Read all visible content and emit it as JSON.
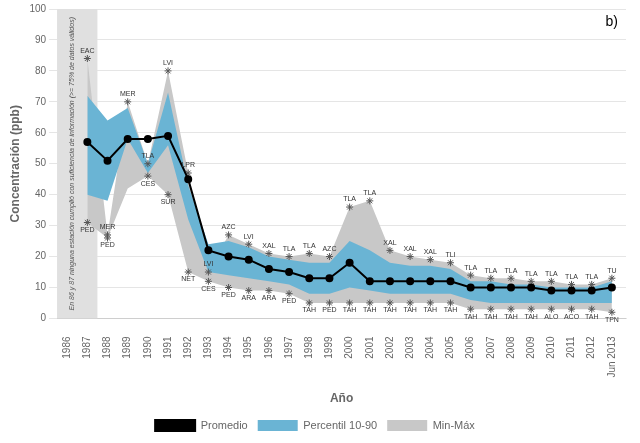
{
  "chart_data": {
    "type": "line",
    "title": "b)",
    "xlabel": "Año",
    "ylabel": "Concentración (ppb)",
    "x": [
      1987,
      1988,
      1989,
      1990,
      1991,
      1992,
      1993,
      1994,
      1995,
      1996,
      1997,
      1998,
      1999,
      2000,
      2001,
      2002,
      2003,
      2004,
      2005,
      2006,
      2007,
      2008,
      2009,
      2010,
      2011,
      2012,
      2013
    ],
    "xlim": [
      1985.5,
      2013.7
    ],
    "xticks": [
      1986,
      1987,
      1988,
      1989,
      1990,
      1991,
      1992,
      1993,
      1994,
      1995,
      1996,
      1997,
      1998,
      1999,
      2000,
      2001,
      2002,
      2003,
      2004,
      2005,
      2006,
      2007,
      2008,
      2009,
      2010,
      2011,
      2012,
      {
        "value": 2013,
        "label": "Jun 2013"
      }
    ],
    "ylim": [
      0,
      100
    ],
    "yticks": [
      0,
      10,
      20,
      30,
      40,
      50,
      60,
      70,
      80,
      90,
      100
    ],
    "grid": "y",
    "legend": "bottom",
    "series": [
      {
        "name": "Min-Máx",
        "type": "band",
        "color": "#c8c8c8",
        "lower": [
          31,
          26,
          42,
          46,
          40,
          15,
          12,
          10,
          9,
          9,
          8,
          5,
          5,
          5,
          5,
          5,
          5,
          5,
          5,
          3,
          3,
          3,
          3,
          3,
          3,
          3,
          2
        ],
        "upper": [
          84,
          27,
          70,
          50,
          80,
          47,
          15,
          27,
          24,
          21,
          20,
          21,
          20,
          36,
          38,
          22,
          20,
          19,
          18,
          14,
          13,
          13,
          12,
          12,
          11,
          11,
          13
        ]
      },
      {
        "name": "Percentil 10-90",
        "type": "band",
        "color": "#6ab4d4",
        "lower": [
          40,
          38,
          58,
          47,
          56,
          32,
          15,
          14,
          13,
          12,
          11,
          8,
          8,
          10,
          9,
          8,
          8,
          8,
          8,
          6,
          5,
          5,
          5,
          5,
          5,
          5,
          5
        ],
        "upper": [
          72,
          64,
          68,
          50,
          73,
          43,
          24,
          25,
          23,
          20,
          19,
          18,
          18,
          25,
          22,
          18,
          17,
          17,
          16,
          12,
          12,
          11,
          11,
          10,
          10,
          10,
          12
        ]
      },
      {
        "name": "Promedio",
        "type": "line",
        "color": "#000000",
        "marker": "circle",
        "values": [
          57,
          51,
          58,
          58,
          59,
          45,
          22,
          20,
          19,
          16,
          15,
          13,
          13,
          18,
          12,
          12,
          12,
          12,
          12,
          10,
          10,
          10,
          10,
          9,
          9,
          9,
          10
        ]
      },
      {
        "type": "scatter",
        "marker": "star",
        "color": "#555555",
        "label_position": "above",
        "x": [
          1987,
          1988,
          1989,
          1990,
          1991,
          1992,
          1993,
          1994,
          1995,
          1996,
          1997,
          1998,
          1999,
          2000,
          2001,
          2002,
          2003,
          2004,
          2005,
          2006,
          2007,
          2008,
          2009,
          2010,
          2011,
          2012,
          2013
        ],
        "values": [
          84,
          27,
          70,
          50,
          80,
          47,
          15,
          27,
          24,
          21,
          20,
          21,
          20,
          36,
          38,
          22,
          20,
          19,
          18,
          14,
          13,
          13,
          12,
          12,
          11,
          11,
          13
        ],
        "labels": [
          "EAC",
          "MER",
          "MER",
          "TLA",
          "LVI",
          "LPR",
          "LVI",
          "AZC",
          "LVI",
          "XAL",
          "TLA",
          "TLA",
          "AZC",
          "TLA",
          "TLA",
          "XAL",
          "XAL",
          "XAL",
          "TLI",
          "TLA",
          "TLA",
          "TLA",
          "TLA",
          "TLA",
          "TLA",
          "TLA",
          "TU"
        ]
      },
      {
        "type": "scatter",
        "marker": "star",
        "color": "#555555",
        "label_position": "below",
        "x": [
          1987,
          1988,
          1990,
          1991,
          1992,
          1993,
          1994,
          1995,
          1996,
          1997,
          1998,
          1999,
          2000,
          2001,
          2002,
          2003,
          2004,
          2005,
          2006,
          2007,
          2008,
          2009,
          2010,
          2011,
          2012,
          2013
        ],
        "values": [
          31,
          26,
          46,
          40,
          15,
          12,
          10,
          9,
          9,
          8,
          5,
          5,
          5,
          5,
          5,
          5,
          5,
          5,
          3,
          3,
          3,
          3,
          3,
          3,
          3,
          2
        ],
        "labels": [
          "PED",
          "PED",
          "CES",
          "SUR",
          "NET",
          "CES",
          "PED",
          "ARA",
          "ARA",
          "PED",
          "TAH",
          "PED",
          "TAH",
          "TAH",
          "TAH",
          "TAH",
          "TAH",
          "TAH",
          "TAH",
          "TAH",
          "TAH",
          "TAH",
          "ALO",
          "ACO",
          "TAH",
          "TPN"
        ]
      }
    ],
    "shaded_regions": [
      {
        "x0": 1985.5,
        "x1": 1987.5,
        "color": "#e0e0e0",
        "text": "En 86 y 87 ninguna estación cumplió con suficiencia de información (>= 75% de datos válidos)"
      }
    ]
  }
}
